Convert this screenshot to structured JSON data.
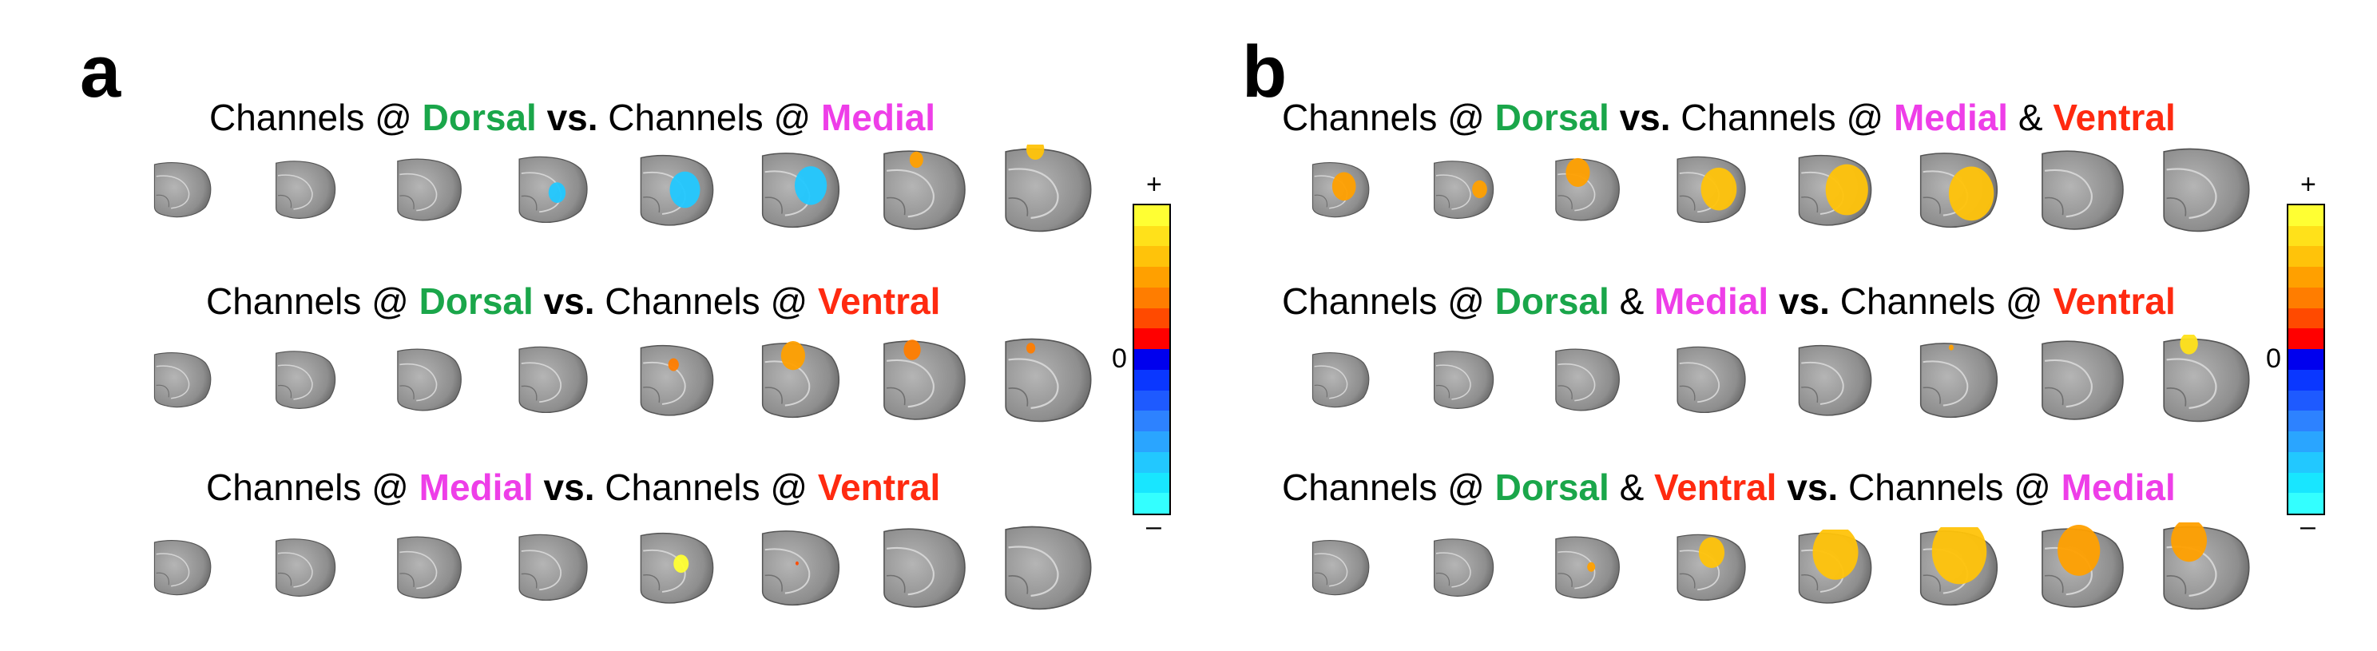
{
  "panels": [
    {
      "letter": "a",
      "rows": [
        {
          "parts": [
            {
              "text": "Channels @ ",
              "color": "#000000",
              "bold": false
            },
            {
              "text": "Dorsal",
              "color": "#1aa64a",
              "bold": true
            },
            {
              "text": " vs.",
              "color": "#000000",
              "bold": true
            },
            {
              "text": " Channels @ ",
              "color": "#000000",
              "bold": false
            },
            {
              "text": "Medial",
              "color": "#ee3ee8",
              "bold": true
            }
          ]
        },
        {
          "parts": [
            {
              "text": "Channels @ ",
              "color": "#000000",
              "bold": false
            },
            {
              "text": "Dorsal",
              "color": "#1aa64a",
              "bold": true
            },
            {
              "text": " vs.",
              "color": "#000000",
              "bold": true
            },
            {
              "text": " Channels @ ",
              "color": "#000000",
              "bold": false
            },
            {
              "text": "Ventral",
              "color": "#ff2a10",
              "bold": true
            }
          ]
        },
        {
          "parts": [
            {
              "text": "Channels @ ",
              "color": "#000000",
              "bold": false
            },
            {
              "text": "Medial",
              "color": "#ee3ee8",
              "bold": true
            },
            {
              "text": " vs.",
              "color": "#000000",
              "bold": true
            },
            {
              "text": " Channels @ ",
              "color": "#000000",
              "bold": false
            },
            {
              "text": "Ventral",
              "color": "#ff2a10",
              "bold": true
            }
          ]
        }
      ]
    },
    {
      "letter": "b",
      "rows": [
        {
          "parts": [
            {
              "text": "Channels @ ",
              "color": "#000000",
              "bold": false
            },
            {
              "text": "Dorsal",
              "color": "#1aa64a",
              "bold": true
            },
            {
              "text": " vs.",
              "color": "#000000",
              "bold": true
            },
            {
              "text": " Channels @ ",
              "color": "#000000",
              "bold": false
            },
            {
              "text": "Medial",
              "color": "#ee3ee8",
              "bold": true
            },
            {
              "text": " & ",
              "color": "#000000",
              "bold": false
            },
            {
              "text": "Ventral",
              "color": "#ff2a10",
              "bold": true
            }
          ]
        },
        {
          "parts": [
            {
              "text": "Channels @ ",
              "color": "#000000",
              "bold": false
            },
            {
              "text": "Dorsal",
              "color": "#1aa64a",
              "bold": true
            },
            {
              "text": " & ",
              "color": "#000000",
              "bold": false
            },
            {
              "text": "Medial",
              "color": "#ee3ee8",
              "bold": true
            },
            {
              "text": " vs.",
              "color": "#000000",
              "bold": true
            },
            {
              "text": " Channels @ ",
              "color": "#000000",
              "bold": false
            },
            {
              "text": "Ventral",
              "color": "#ff2a10",
              "bold": true
            }
          ]
        },
        {
          "parts": [
            {
              "text": "Channels @ ",
              "color": "#000000",
              "bold": false
            },
            {
              "text": "Dorsal",
              "color": "#1aa64a",
              "bold": true
            },
            {
              "text": " & ",
              "color": "#000000",
              "bold": false
            },
            {
              "text": "Ventral",
              "color": "#ff2a10",
              "bold": true
            },
            {
              "text": " vs.",
              "color": "#000000",
              "bold": true
            },
            {
              "text": " Channels @ ",
              "color": "#000000",
              "bold": false
            },
            {
              "text": "Medial",
              "color": "#ee3ee8",
              "bold": true
            }
          ]
        }
      ]
    }
  ],
  "colorbar": {
    "plus_label": "+",
    "zero_label": "0",
    "minus_label": "–",
    "colors": [
      "#ffff33",
      "#ffe11a",
      "#ffc30a",
      "#ffa000",
      "#ff7d00",
      "#ff4a00",
      "#ff0000",
      "#0000ee",
      "#0a37ff",
      "#1e5aff",
      "#2d82ff",
      "#2aa5ff",
      "#22c8ff",
      "#18e6ff",
      "#33ffff"
    ]
  }
}
